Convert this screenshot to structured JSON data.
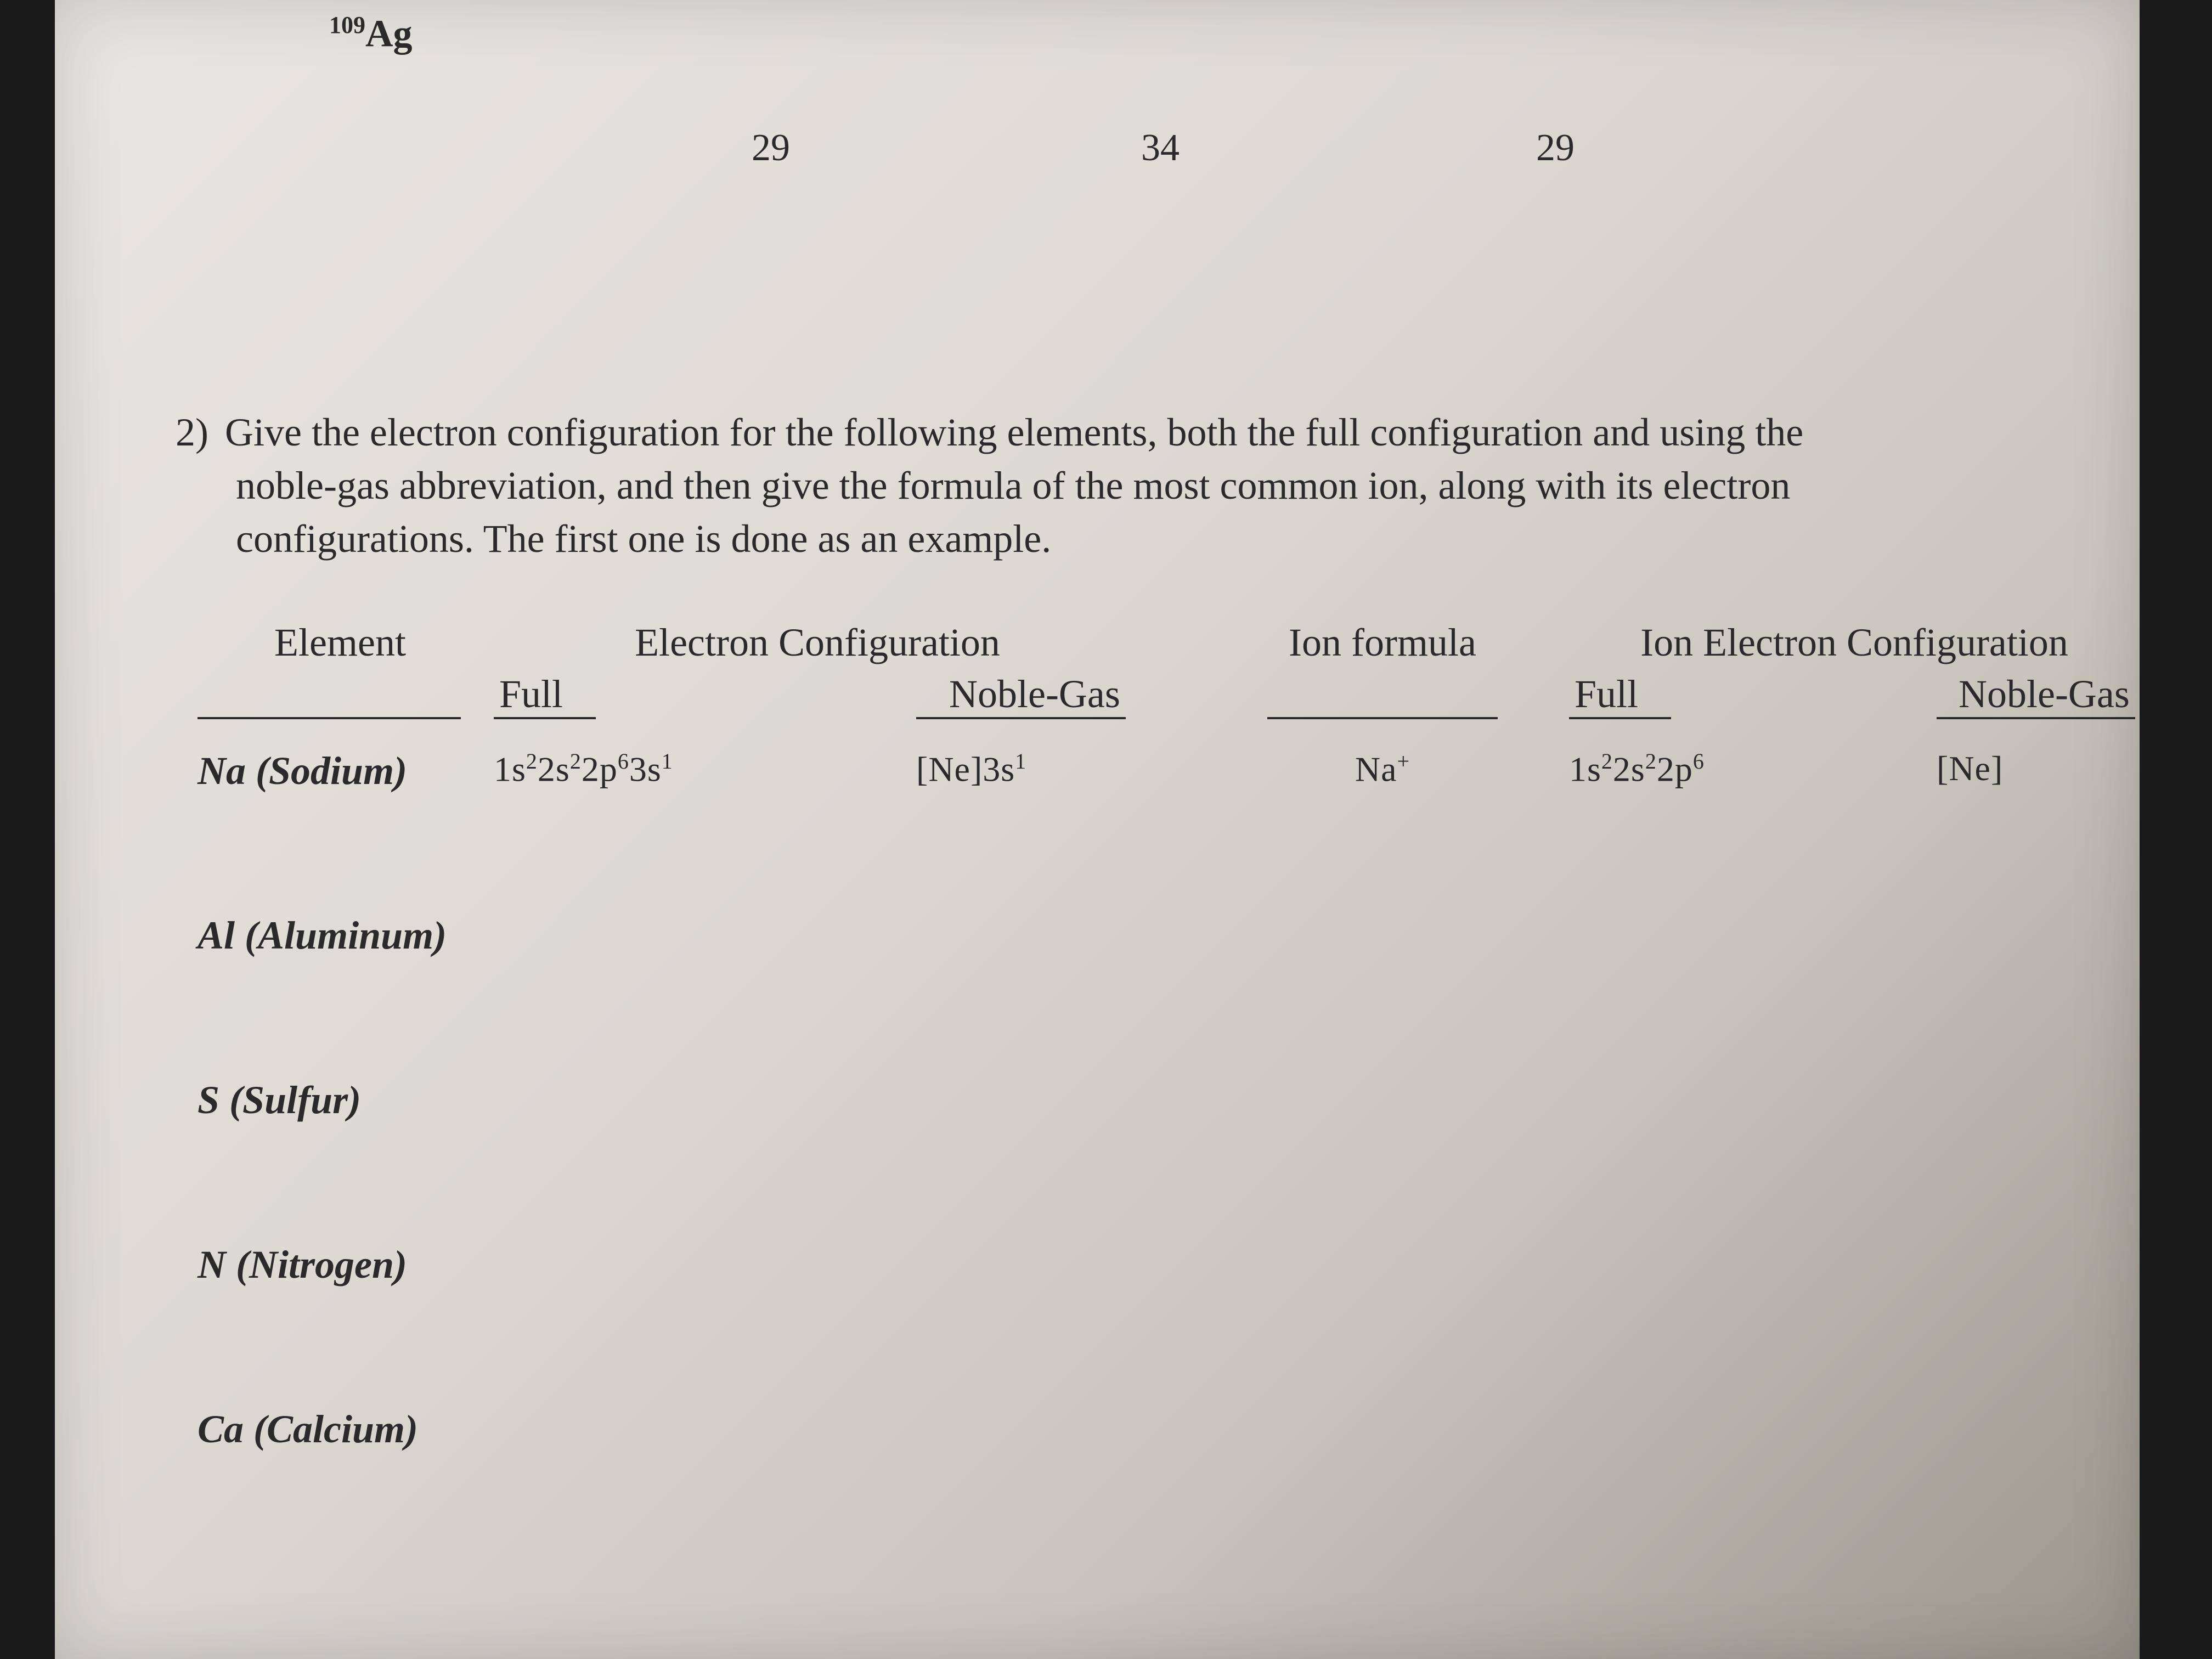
{
  "isotope": {
    "mass": "109",
    "symbol": "Ag"
  },
  "numbers": {
    "n1": "29",
    "n2": "34",
    "n3": "29"
  },
  "question": {
    "num": "2)",
    "line1": "Give the electron configuration for the following elements, both the full configuration and using the",
    "line2": "noble-gas abbreviation, and then give the formula of the most common ion, along with its electron",
    "line3": "configurations.  The first one is done as an example."
  },
  "headers": {
    "element": "Element",
    "ec": "Electron Configuration",
    "full": "Full",
    "noble": "Noble-Gas",
    "ion": "Ion formula",
    "iec": "Ion Electron Configuration"
  },
  "rows": [
    {
      "element": "Na (Sodium)",
      "full_html": "1s<sup class='cfg'>2</sup>2s<sup class='cfg'>2</sup>2p<sup class='cfg'>6</sup>3s<sup class='cfg'>1</sup>",
      "noble_html": "[Ne]3s<sup class='cfg'>1</sup>",
      "ion_html": "Na<sup class='cfg'>+</sup>",
      "ifull_html": "1s<sup class='cfg'>2</sup>2s<sup class='cfg'>2</sup>2p<sup class='cfg'>6</sup>",
      "ing_html": "[Ne]"
    },
    {
      "element": "Al (Aluminum)"
    },
    {
      "element": "S (Sulfur)"
    },
    {
      "element": "N (Nitrogen)"
    },
    {
      "element": "Ca (Calcium)"
    }
  ],
  "colors": {
    "text": "#2a2a2a",
    "paper_light": "#e8e6e0",
    "paper_dark": "#9a968c"
  }
}
